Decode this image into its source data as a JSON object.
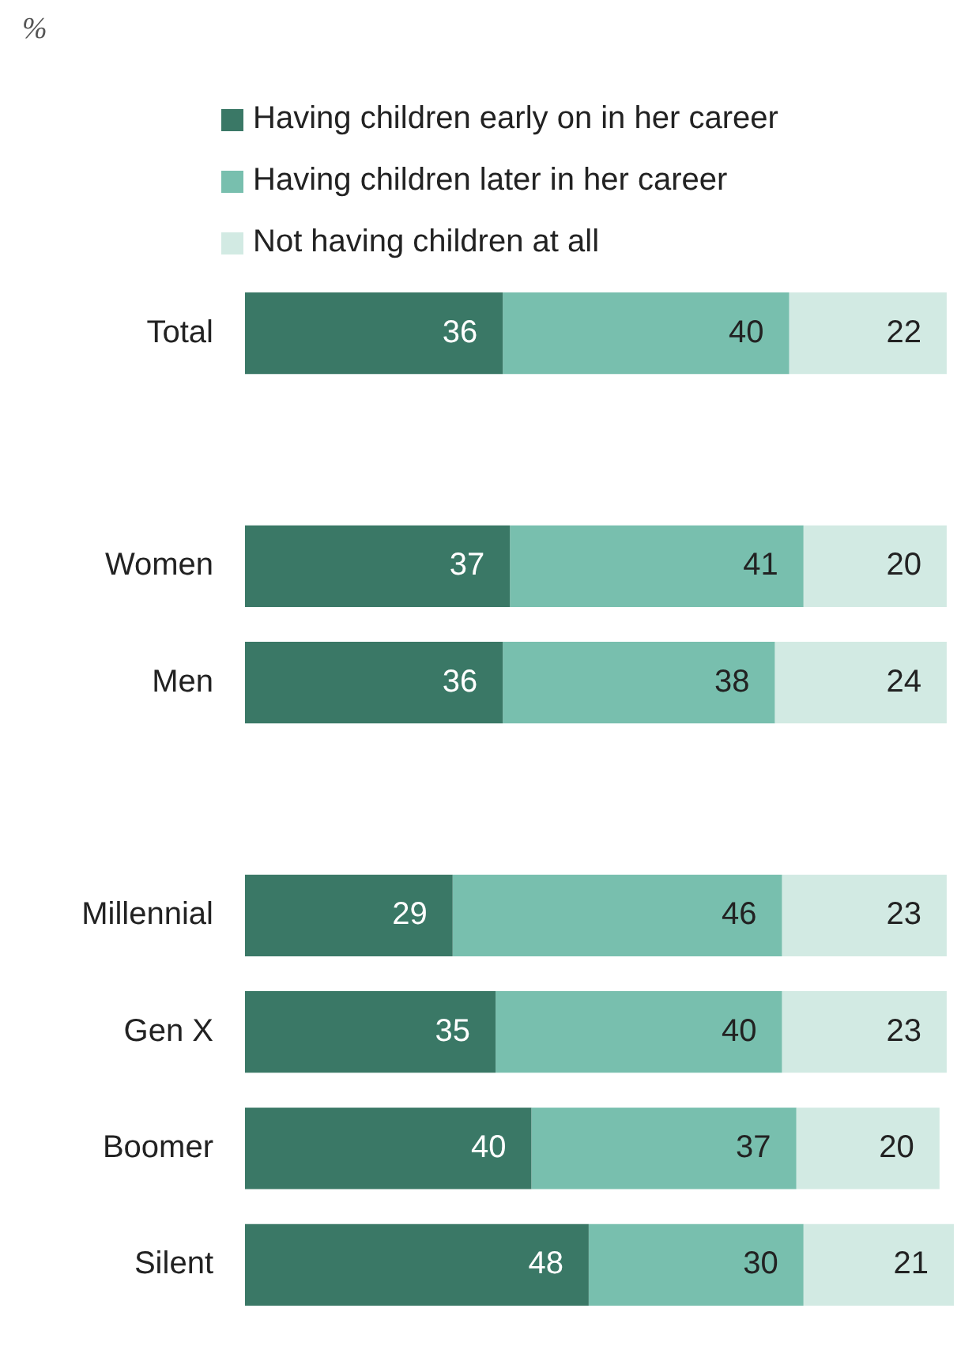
{
  "chart_data": {
    "type": "bar",
    "orientation": "horizontal",
    "stacked": true,
    "data_labels": true,
    "legend": "top",
    "tick_labels": "y",
    "annotations": [
      "%"
    ],
    "categories": [
      "Total",
      null,
      "Women",
      "Men",
      null,
      "Millennial",
      "Gen X",
      "Boomer",
      "Silent"
    ],
    "series": [
      {
        "name": "Having children early on in her career",
        "color": "#3a7866",
        "values": [
          36,
          null,
          37,
          36,
          null,
          29,
          35,
          40,
          48
        ]
      },
      {
        "name": "Having children later in her career",
        "color": "#78bfae",
        "values": [
          40,
          null,
          41,
          38,
          null,
          46,
          40,
          37,
          30
        ]
      },
      {
        "name": "Not having children at all",
        "color": "#d2eae3",
        "values": [
          22,
          null,
          20,
          24,
          null,
          23,
          23,
          20,
          21
        ]
      }
    ]
  }
}
